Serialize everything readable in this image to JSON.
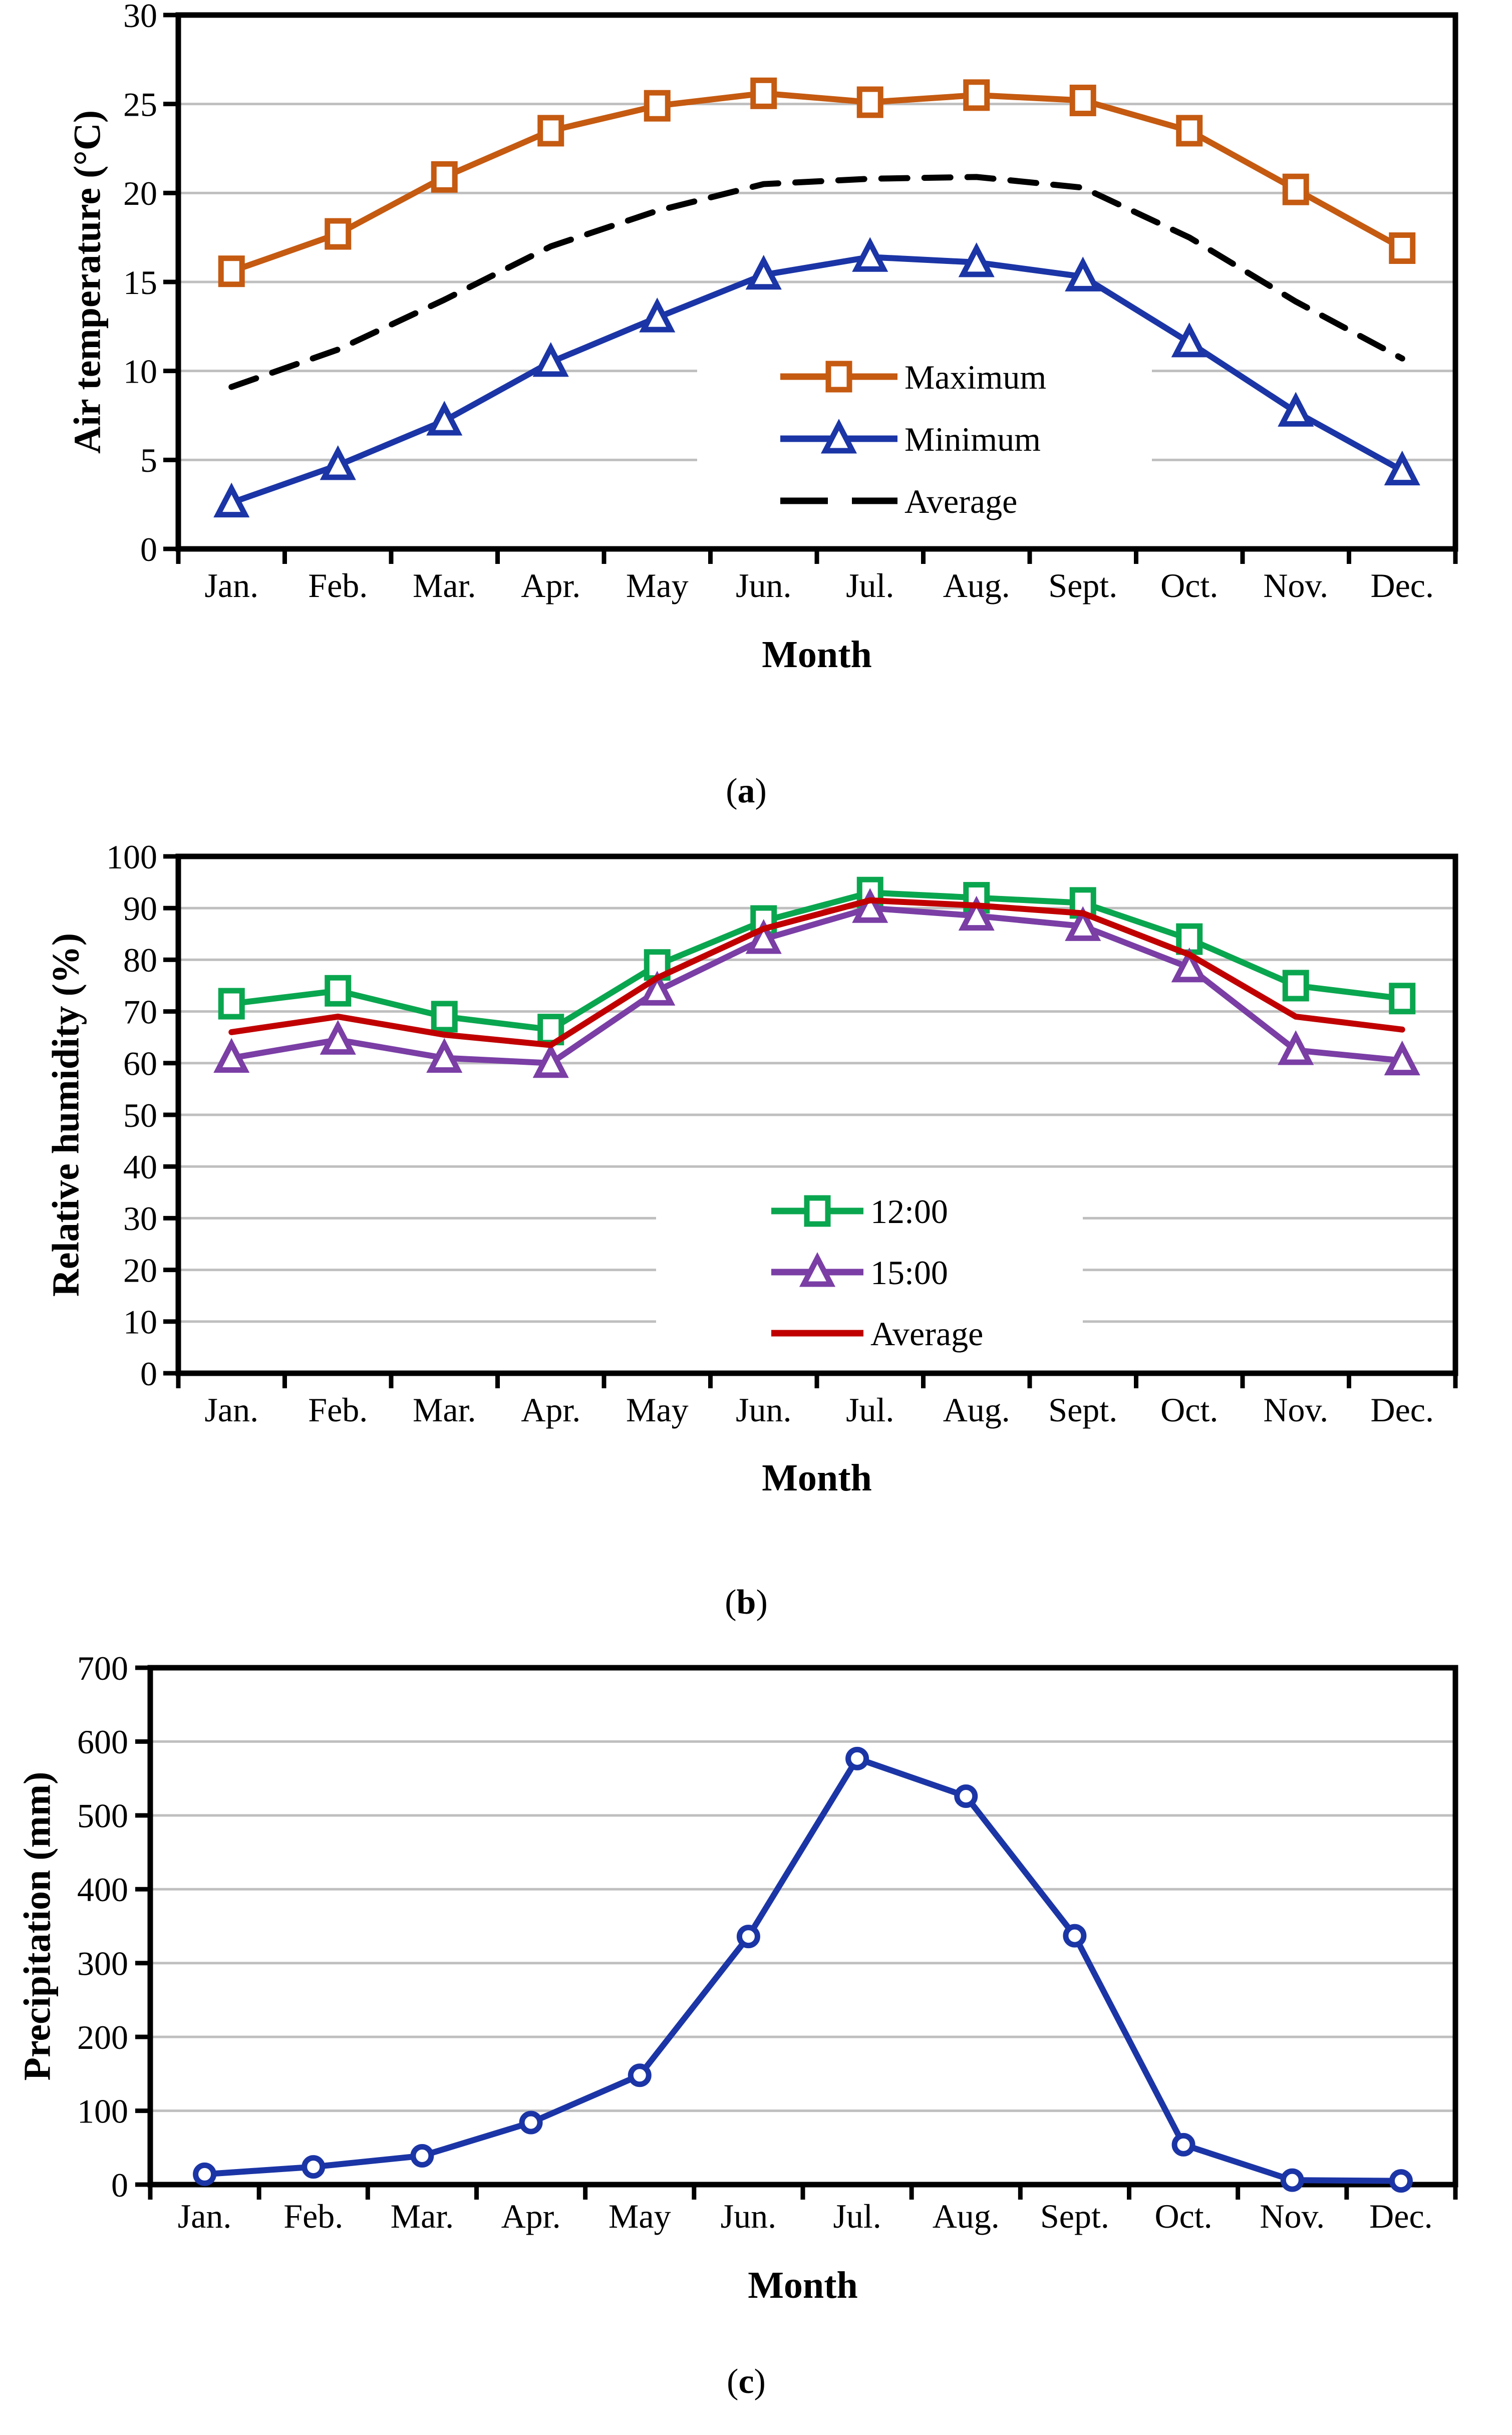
{
  "page": {
    "background": "#ffffff"
  },
  "colors": {
    "maximum_orange": "#C55A11",
    "minimum_blue": "#1B35A6",
    "average_black": "#000000",
    "hum_1200_green": "#0AA64F",
    "hum_1500_purple": "#7A3EA5",
    "hum_average_red": "#C00000",
    "precip_blue": "#1B35A6",
    "gridline_gray": "#BFBFBF",
    "axis_black": "#000000"
  },
  "chart_data": [
    {
      "id": "chart-a",
      "type": "line",
      "caption": {
        "open": "(",
        "letter": "a",
        "close": ")"
      },
      "x_axis_title": "Month",
      "y_axis_title": "Air temperature (°C)",
      "categories": [
        "Jan.",
        "Feb.",
        "Mar.",
        "Apr.",
        "May",
        "Jun.",
        "Jul.",
        "Aug.",
        "Sept.",
        "Oct.",
        "Nov.",
        "Dec."
      ],
      "ylim": [
        0,
        30
      ],
      "y_ticks": [
        0,
        5,
        10,
        15,
        20,
        25,
        30
      ],
      "grid": true,
      "legend_position": "inside-right",
      "series": [
        {
          "name": "Maximum",
          "color": "#C55A11",
          "marker": "square",
          "dash": false,
          "values": [
            15.6,
            17.7,
            20.9,
            23.5,
            24.9,
            25.6,
            25.1,
            25.5,
            25.2,
            23.5,
            20.2,
            16.9
          ]
        },
        {
          "name": "Minimum",
          "color": "#1B35A6",
          "marker": "triangle",
          "dash": false,
          "values": [
            2.6,
            4.7,
            7.2,
            10.5,
            13.0,
            15.4,
            16.4,
            16.1,
            15.3,
            11.6,
            7.7,
            4.4
          ]
        },
        {
          "name": "Average",
          "color": "#000000",
          "marker": "none",
          "dash": true,
          "values": [
            9.1,
            11.2,
            14.0,
            17.0,
            19.0,
            20.5,
            20.8,
            20.9,
            20.3,
            17.5,
            13.9,
            10.7
          ]
        }
      ]
    },
    {
      "id": "chart-b",
      "type": "line",
      "caption": {
        "open": "(",
        "letter": "b",
        "close": ")"
      },
      "x_axis_title": "Month",
      "y_axis_title": "Relative humidity (%)",
      "categories": [
        "Jan.",
        "Feb.",
        "Mar.",
        "Apr.",
        "May",
        "Jun.",
        "Jul.",
        "Aug.",
        "Sept.",
        "Oct.",
        "Nov.",
        "Dec."
      ],
      "ylim": [
        0,
        100
      ],
      "y_ticks": [
        0,
        10,
        20,
        30,
        40,
        50,
        60,
        70,
        80,
        90,
        100
      ],
      "grid": true,
      "legend_position": "inside-right",
      "series": [
        {
          "name": "12:00",
          "color": "#0AA64F",
          "marker": "square",
          "dash": false,
          "values": [
            71.5,
            74,
            69,
            66.5,
            79,
            87.5,
            93,
            92,
            91,
            84,
            75,
            72.5
          ]
        },
        {
          "name": "15:00",
          "color": "#7A3EA5",
          "marker": "triangle",
          "dash": false,
          "values": [
            61,
            64.5,
            61,
            60,
            74,
            84,
            90,
            88.5,
            86.5,
            78.5,
            62.5,
            60.5
          ]
        },
        {
          "name": "Average",
          "color": "#C00000",
          "marker": "none",
          "dash": false,
          "values": [
            66,
            69,
            65.5,
            63.5,
            76.5,
            86,
            91.5,
            90.5,
            89,
            81,
            69,
            66.5
          ]
        }
      ]
    },
    {
      "id": "chart-c",
      "type": "line",
      "caption": {
        "open": "(",
        "letter": "c",
        "close": ")"
      },
      "x_axis_title": "Month",
      "y_axis_title": "Precipitation (mm)",
      "categories": [
        "Jan.",
        "Feb.",
        "Mar.",
        "Apr.",
        "May",
        "Jun.",
        "Jul.",
        "Aug.",
        "Sept.",
        "Oct.",
        "Nov.",
        "Dec."
      ],
      "ylim": [
        0,
        700
      ],
      "y_ticks": [
        0,
        100,
        200,
        300,
        400,
        500,
        600,
        700
      ],
      "grid": true,
      "legend_position": "none",
      "series": [
        {
          "name": "Precipitation",
          "color": "#1B35A6",
          "marker": "circle",
          "dash": false,
          "values": [
            14,
            24,
            39,
            84,
            148,
            336,
            577,
            526,
            337,
            54,
            6,
            5
          ]
        }
      ]
    }
  ]
}
